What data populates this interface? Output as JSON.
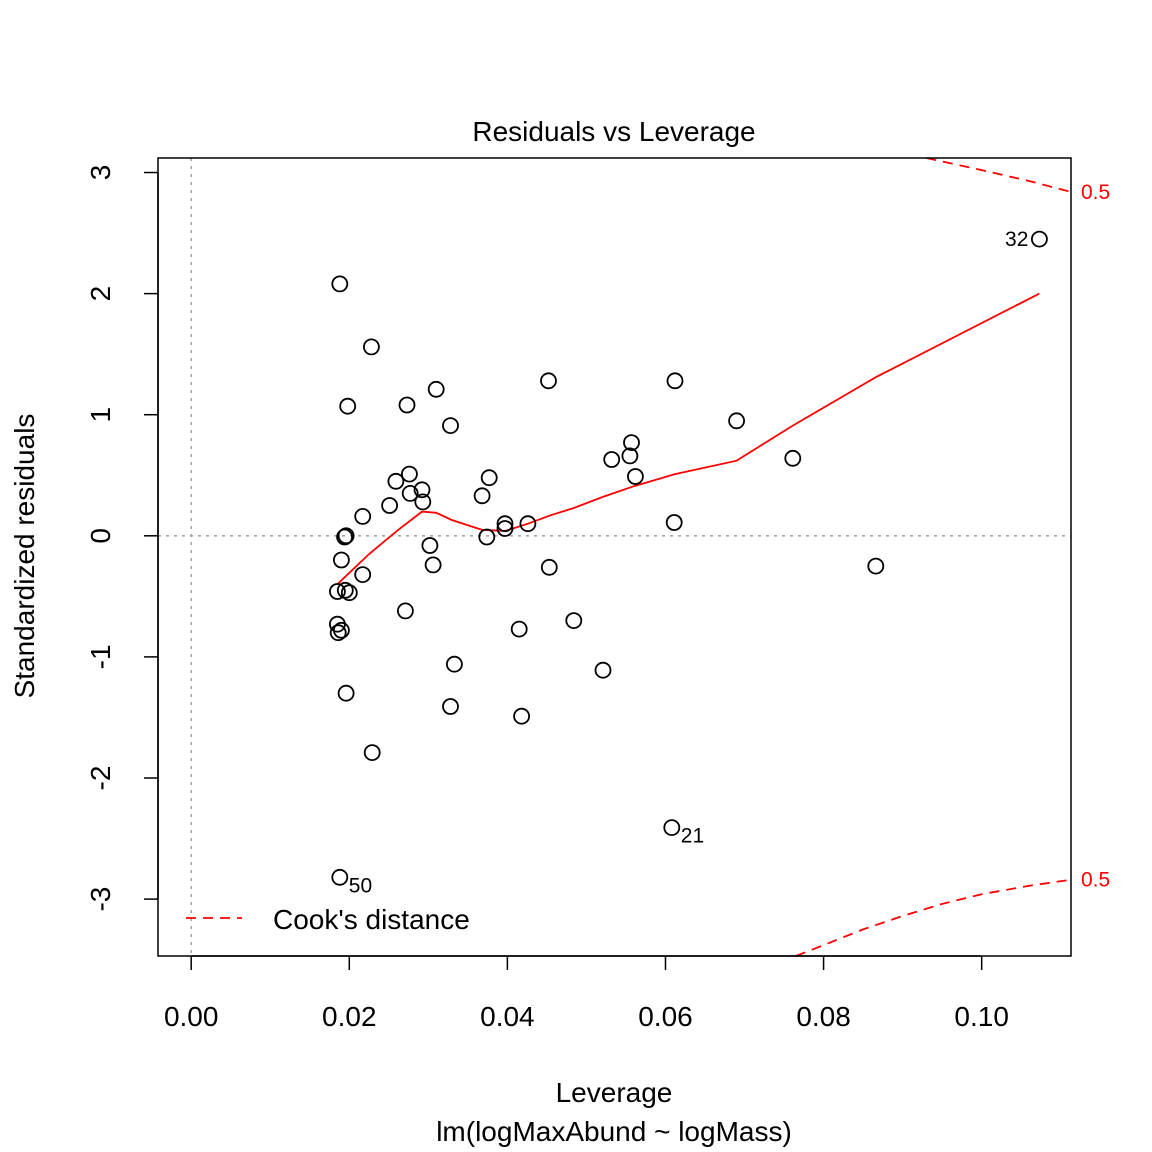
{
  "chart_data": {
    "type": "scatter",
    "title": "Residuals vs Leverage",
    "xlabel": "Leverage",
    "subtitle": "lm(logMaxAbund ~ logMass)",
    "ylabel": "Standardized residuals",
    "xlim": [
      -0.0042,
      0.1113
    ],
    "ylim": [
      -3.47,
      3.12
    ],
    "x_ticks": [
      {
        "value": 0.0,
        "label": "0.00"
      },
      {
        "value": 0.02,
        "label": "0.02"
      },
      {
        "value": 0.04,
        "label": "0.04"
      },
      {
        "value": 0.06,
        "label": "0.06"
      },
      {
        "value": 0.08,
        "label": "0.08"
      },
      {
        "value": 0.1,
        "label": "0.10"
      }
    ],
    "y_ticks": [
      {
        "value": -3,
        "label": "-3"
      },
      {
        "value": -2,
        "label": "-2"
      },
      {
        "value": -1,
        "label": "-1"
      },
      {
        "value": 0,
        "label": "0"
      },
      {
        "value": 1,
        "label": "1"
      },
      {
        "value": 2,
        "label": "2"
      },
      {
        "value": 3,
        "label": "3"
      }
    ],
    "reference_lines": {
      "h": 0,
      "v": 0,
      "style": "dotted grey"
    },
    "points": [
      {
        "x": 0.0188,
        "y": 2.08
      },
      {
        "x": 0.0228,
        "y": 1.56
      },
      {
        "x": 0.0198,
        "y": 1.07
      },
      {
        "x": 0.031,
        "y": 1.21
      },
      {
        "x": 0.0273,
        "y": 1.08
      },
      {
        "x": 0.0328,
        "y": 0.91
      },
      {
        "x": 0.0452,
        "y": 1.28
      },
      {
        "x": 0.0612,
        "y": 1.28
      },
      {
        "x": 0.069,
        "y": 0.95
      },
      {
        "x": 0.0557,
        "y": 0.77
      },
      {
        "x": 0.0555,
        "y": 0.66
      },
      {
        "x": 0.0532,
        "y": 0.63
      },
      {
        "x": 0.0562,
        "y": 0.49
      },
      {
        "x": 0.0761,
        "y": 0.64
      },
      {
        "x": 0.0276,
        "y": 0.51
      },
      {
        "x": 0.0259,
        "y": 0.45
      },
      {
        "x": 0.0377,
        "y": 0.48
      },
      {
        "x": 0.0292,
        "y": 0.38
      },
      {
        "x": 0.0277,
        "y": 0.35
      },
      {
        "x": 0.0368,
        "y": 0.33
      },
      {
        "x": 0.0293,
        "y": 0.28
      },
      {
        "x": 0.0251,
        "y": 0.25
      },
      {
        "x": 0.0217,
        "y": 0.16
      },
      {
        "x": 0.0397,
        "y": 0.1
      },
      {
        "x": 0.0426,
        "y": 0.1
      },
      {
        "x": 0.0397,
        "y": 0.06
      },
      {
        "x": 0.0611,
        "y": 0.11
      },
      {
        "x": 0.0196,
        "y": 0.0
      },
      {
        "x": 0.0194,
        "y": -0.01
      },
      {
        "x": 0.0374,
        "y": -0.01
      },
      {
        "x": 0.0302,
        "y": -0.08
      },
      {
        "x": 0.019,
        "y": -0.2
      },
      {
        "x": 0.0306,
        "y": -0.24
      },
      {
        "x": 0.0453,
        "y": -0.26
      },
      {
        "x": 0.0866,
        "y": -0.25
      },
      {
        "x": 0.0217,
        "y": -0.32
      },
      {
        "x": 0.0185,
        "y": -0.46
      },
      {
        "x": 0.0195,
        "y": -0.45
      },
      {
        "x": 0.02,
        "y": -0.47
      },
      {
        "x": 0.0271,
        "y": -0.62
      },
      {
        "x": 0.0185,
        "y": -0.73
      },
      {
        "x": 0.019,
        "y": -0.78
      },
      {
        "x": 0.0186,
        "y": -0.8
      },
      {
        "x": 0.0415,
        "y": -0.77
      },
      {
        "x": 0.0484,
        "y": -0.7
      },
      {
        "x": 0.0333,
        "y": -1.06
      },
      {
        "x": 0.0521,
        "y": -1.11
      },
      {
        "x": 0.0196,
        "y": -1.3
      },
      {
        "x": 0.0328,
        "y": -1.41
      },
      {
        "x": 0.0418,
        "y": -1.49
      },
      {
        "x": 0.0229,
        "y": -1.79
      },
      {
        "x": 0.0608,
        "y": -2.41
      },
      {
        "x": 0.0188,
        "y": -2.82
      },
      {
        "x": 0.1073,
        "y": 2.45
      }
    ],
    "point_labels": [
      {
        "label": "32",
        "x": 0.1073,
        "y": 2.45,
        "side": "left"
      },
      {
        "label": "21",
        "x": 0.0608,
        "y": -2.41,
        "side": "right-below"
      },
      {
        "label": "50",
        "x": 0.0188,
        "y": -2.82,
        "side": "right-below"
      }
    ],
    "smooth_line": {
      "color": "#ff0000",
      "x": [
        0.0185,
        0.0225,
        0.0262,
        0.0292,
        0.031,
        0.033,
        0.0368,
        0.0397,
        0.0426,
        0.0455,
        0.0484,
        0.052,
        0.056,
        0.0612,
        0.069,
        0.0761,
        0.0866,
        0.1073
      ],
      "y": [
        -0.4,
        -0.15,
        0.05,
        0.2,
        0.19,
        0.13,
        0.05,
        0.04,
        0.1,
        0.17,
        0.23,
        0.32,
        0.41,
        0.51,
        0.62,
        0.91,
        1.31,
        2.0
      ]
    },
    "cook_contours": {
      "level_label": "0.5",
      "color": "#ff0000",
      "upper": {
        "x": [
          0.093,
          0.1,
          0.106,
          0.1113
        ],
        "y": [
          3.12,
          3.02,
          2.93,
          2.84
        ]
      },
      "lower": {
        "x": [
          0.0765,
          0.08,
          0.085,
          0.09,
          0.095,
          0.1,
          0.106,
          0.1113
        ],
        "y": [
          -3.47,
          -3.38,
          -3.25,
          -3.14,
          -3.04,
          -2.96,
          -2.89,
          -2.84
        ]
      }
    },
    "legend": {
      "position": "bottom-left",
      "entries": [
        {
          "label": "Cook's distance",
          "style": "red dashed"
        }
      ]
    }
  }
}
